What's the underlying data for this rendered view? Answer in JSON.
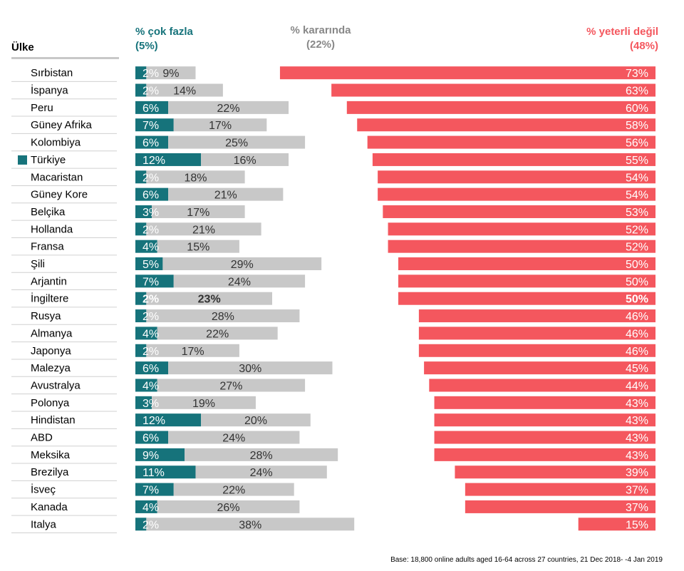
{
  "header": {
    "country": "Ülke",
    "too_much": "% çok fazla",
    "too_much_avg": "(5%)",
    "about_right": "% kararında",
    "about_right_avg": "(22%)",
    "not_enough": "% yeterli değil",
    "not_enough_avg": "(48%)"
  },
  "colors": {
    "too_much": "#16737b",
    "about_right": "#c8c8c8",
    "not_enough": "#f4575e",
    "highlight_marker": "#16737b"
  },
  "footnote": "Base: 18,800 online adults aged 16-64 across 27 countries,  21 Dec 2018- -4 Jan  2019",
  "chart_data": {
    "type": "bar",
    "stacked": true,
    "categories": [
      "Sırbistan",
      "İspanya",
      "Peru",
      "Güney Afrika",
      "Kolombiya",
      "Türkiye",
      "Macaristan",
      "Güney Kore",
      "Belçika",
      "Hollanda",
      "Fransa",
      "Şili",
      "Arjantin",
      "İngiltere",
      "Rusya",
      "Almanya",
      "Japonya",
      "Malezya",
      "Avustralya",
      "Polonya",
      "Hindistan",
      "ABD",
      "Meksika",
      "Brezilya",
      "İsveç",
      "Kanada",
      "Italya"
    ],
    "highlighted_category": "Türkiye",
    "bold_category": "İngiltere",
    "series": [
      {
        "name": "% çok fazla",
        "values": [
          2,
          2,
          6,
          7,
          6,
          12,
          2,
          6,
          3,
          2,
          4,
          5,
          7,
          2,
          2,
          4,
          2,
          6,
          4,
          3,
          12,
          6,
          9,
          11,
          7,
          4,
          2
        ]
      },
      {
        "name": "% kararında",
        "values": [
          9,
          14,
          22,
          17,
          25,
          16,
          18,
          21,
          17,
          21,
          15,
          29,
          24,
          23,
          28,
          22,
          17,
          30,
          27,
          19,
          20,
          24,
          28,
          24,
          22,
          26,
          38
        ]
      },
      {
        "name": "% yeterli değil",
        "values": [
          73,
          63,
          60,
          58,
          56,
          55,
          54,
          54,
          53,
          52,
          52,
          50,
          50,
          50,
          46,
          46,
          46,
          45,
          44,
          43,
          43,
          43,
          43,
          39,
          37,
          37,
          15
        ]
      }
    ],
    "value_suffix": "%"
  }
}
